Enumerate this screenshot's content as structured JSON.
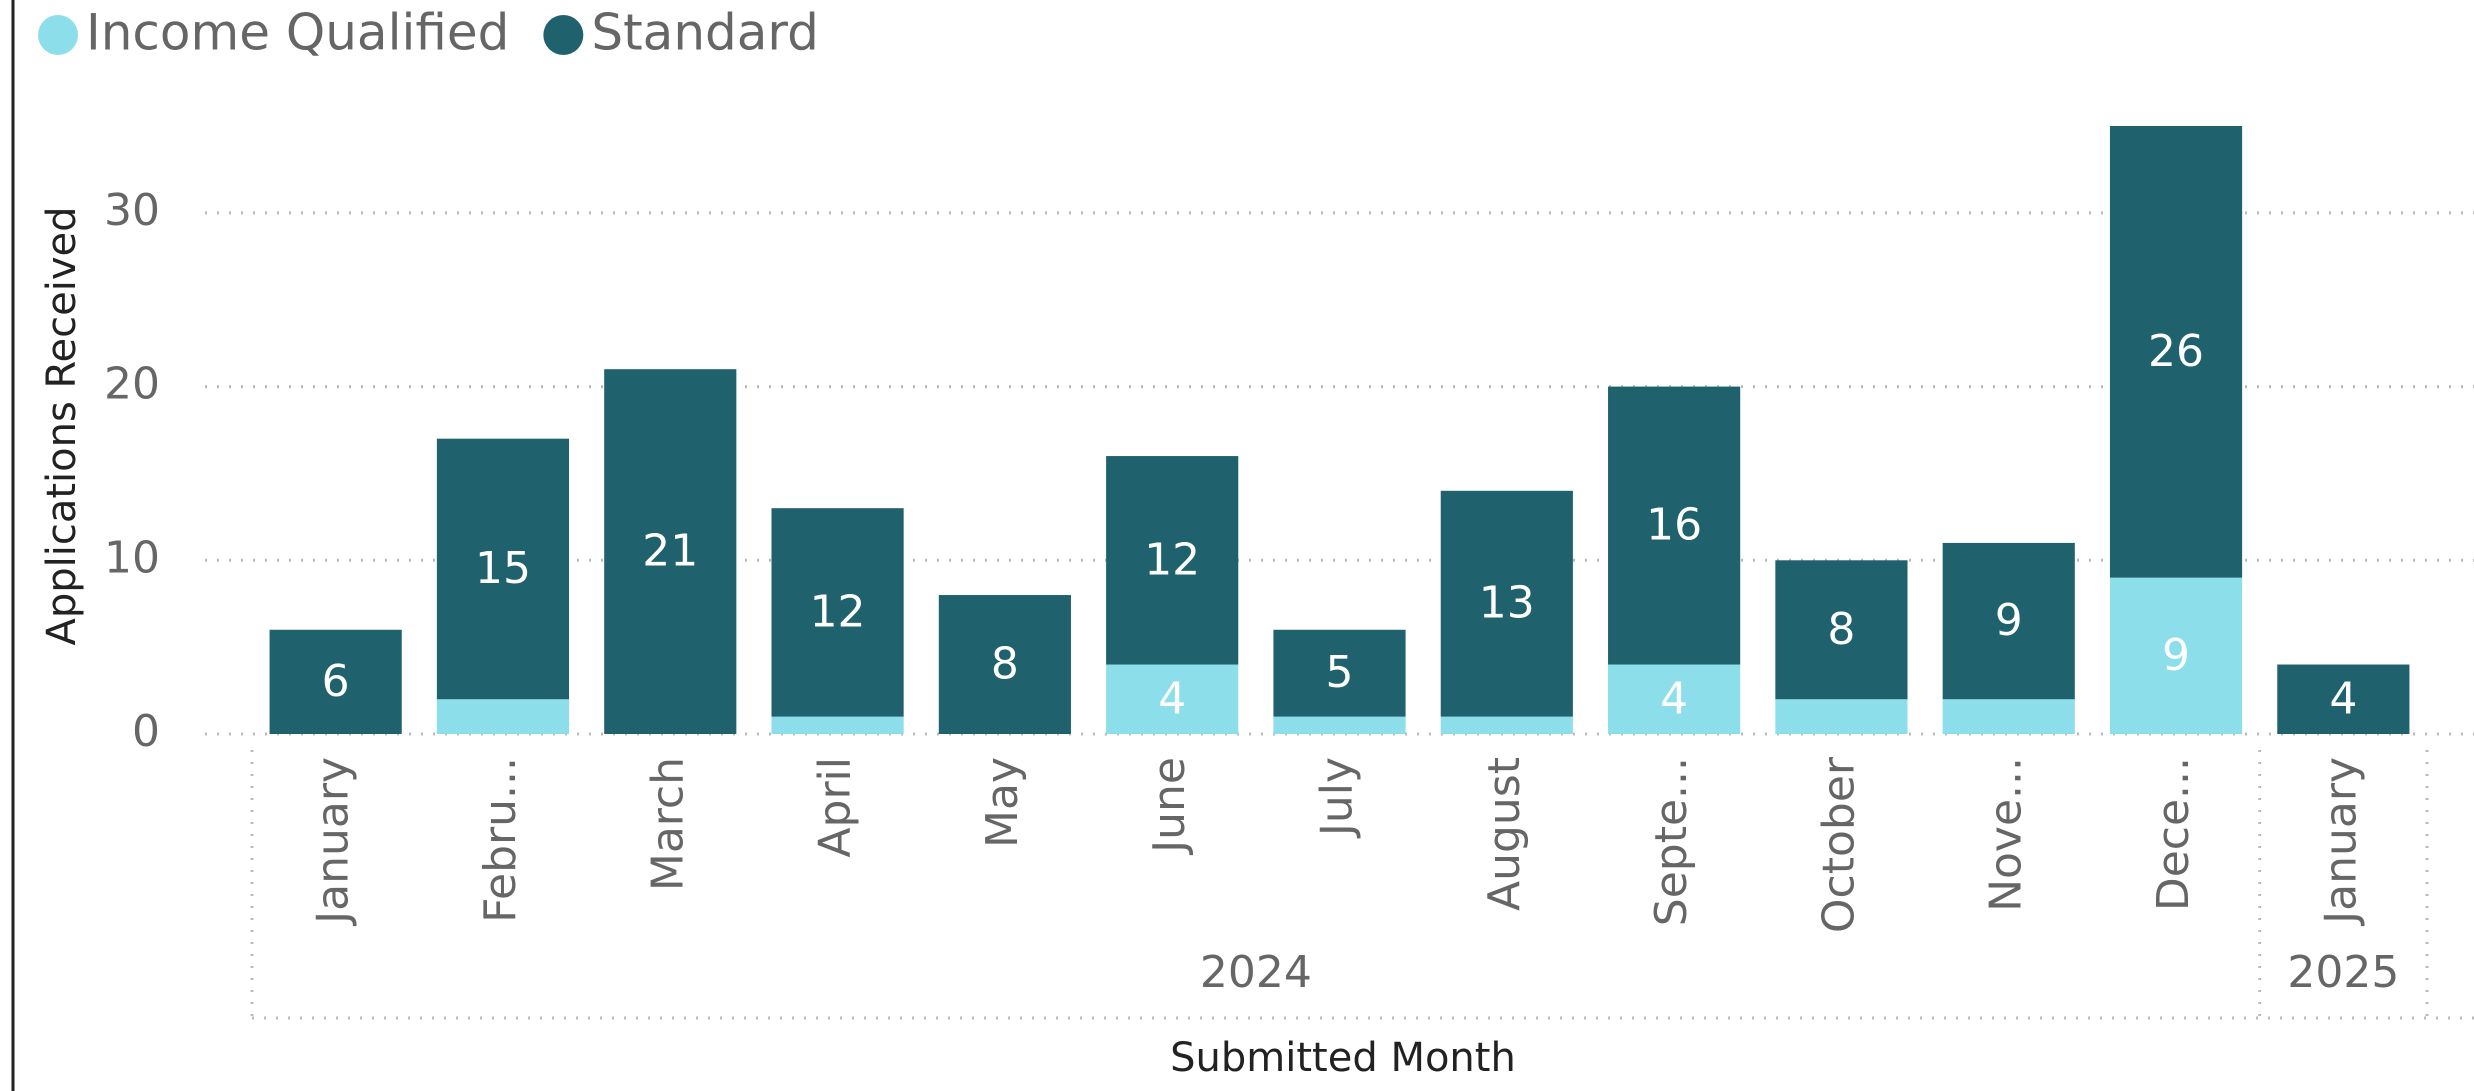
{
  "chart_data": {
    "type": "stacked_bar",
    "categories": [
      "January",
      "Febru...",
      "March",
      "April",
      "May",
      "June",
      "July",
      "August",
      "Septe...",
      "October",
      "Nove...",
      "Dece...",
      "January"
    ],
    "category_groups": [
      "2024",
      "2024",
      "2024",
      "2024",
      "2024",
      "2024",
      "2024",
      "2024",
      "2024",
      "2024",
      "2024",
      "2024",
      "2025"
    ],
    "series": [
      {
        "name": "Income Qualified",
        "color": "#8cdeea",
        "values": [
          0,
          2,
          0,
          1,
          0,
          4,
          1,
          1,
          4,
          2,
          2,
          9,
          0
        ],
        "value_labels": [
          null,
          null,
          null,
          null,
          null,
          "4",
          null,
          null,
          "4",
          null,
          null,
          "9",
          null
        ]
      },
      {
        "name": "Standard",
        "color": "#1f626e",
        "values": [
          6,
          15,
          21,
          12,
          8,
          12,
          5,
          13,
          16,
          8,
          9,
          26,
          4
        ]
      }
    ],
    "ylim": [
      0,
      35
    ],
    "yticks": [
      0,
      10,
      20,
      30
    ],
    "grid": true,
    "y_label": "Applications Received",
    "x_label": "Submitted Month",
    "legend": "top-left"
  }
}
